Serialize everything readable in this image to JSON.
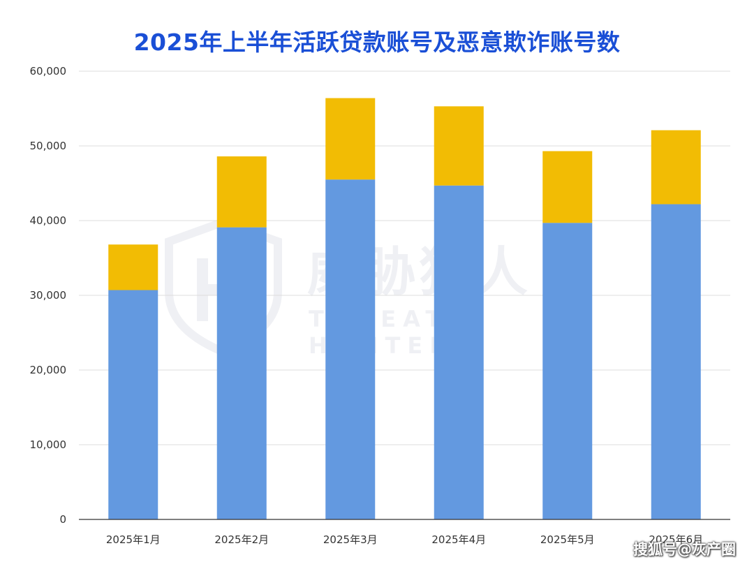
{
  "chart_data": {
    "type": "bar",
    "stacked": true,
    "title": "2025年上半年活跃贷款账号及恶意欺诈账号数",
    "categories": [
      "2025年1月",
      "2025年2月",
      "2025年3月",
      "2025年4月",
      "2025年5月",
      "2025年6月"
    ],
    "series": [
      {
        "color": "#6399e0",
        "values": [
          30700,
          39100,
          45500,
          44700,
          39700,
          42200
        ]
      },
      {
        "color": "#f2bc04",
        "values": [
          6100,
          9500,
          10900,
          10600,
          9600,
          9900
        ]
      }
    ],
    "ylim": [
      0,
      60000
    ],
    "yticks": [
      "0",
      "10,000",
      "20,000",
      "30,000",
      "40,000",
      "50,000",
      "60,000"
    ],
    "ytick_values": [
      0,
      10000,
      20000,
      30000,
      40000,
      50000,
      60000
    ],
    "grid": true,
    "legend": "none"
  },
  "watermark": {
    "cn": "威胁猎人",
    "en": "THREAT HUNTER"
  },
  "footer": "搜狐号@灰产圈"
}
